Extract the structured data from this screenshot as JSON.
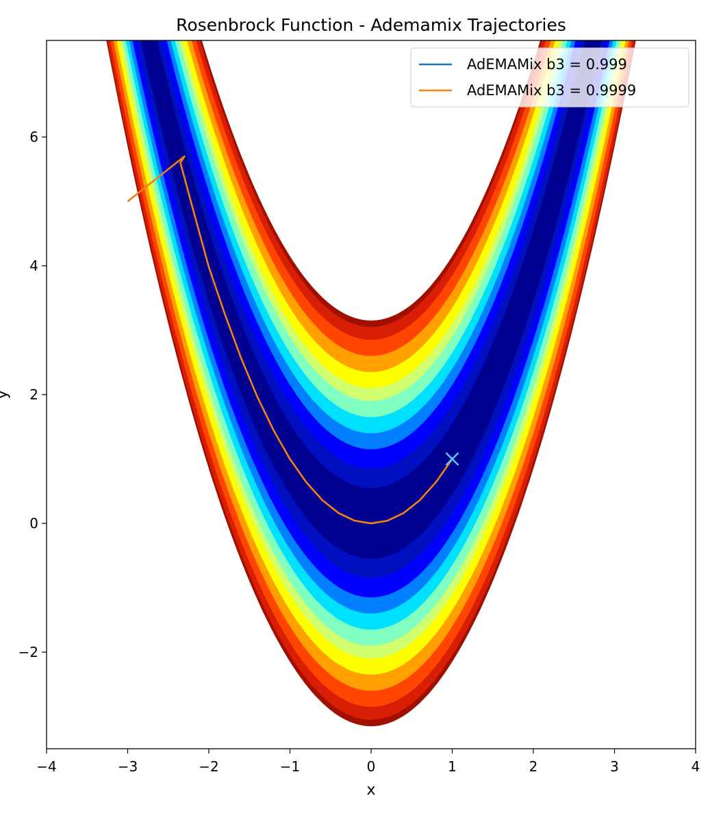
{
  "chart_data": {
    "type": "line",
    "title": "Rosenbrock Function - Ademamix Trajectories",
    "xlabel": "x",
    "ylabel": "y",
    "xlim": [
      -4,
      4
    ],
    "ylim": [
      -3.5,
      7.5
    ],
    "xticks": [
      -4,
      -3,
      -2,
      -1,
      0,
      1,
      2,
      3,
      4
    ],
    "yticks": [
      -2,
      0,
      2,
      4,
      6
    ],
    "grid": false,
    "legend_position": "top-right",
    "background": "Rosenbrock function filled contour (jet colormap)",
    "colormap": [
      "#000080",
      "#0000ff",
      "#0080ff",
      "#00e0ff",
      "#80ffc0",
      "#d0ff70",
      "#ffff00",
      "#ffa000",
      "#ff3000",
      "#a01000"
    ],
    "series": [
      {
        "name": "AdEMAMix b3 = 0.999",
        "color": "#1f77b4",
        "x": [
          -3.0,
          -2.3,
          -2.35,
          -2.2,
          -2.0,
          -1.8,
          -1.6,
          -1.4,
          -1.2,
          -1.0,
          -0.8,
          -0.6,
          -0.4,
          -0.2,
          0.0,
          0.2,
          0.4,
          0.6,
          0.8,
          1.0
        ],
        "y": [
          5.0,
          5.7,
          5.6,
          4.9,
          3.98,
          3.24,
          2.56,
          1.96,
          1.44,
          1.0,
          0.64,
          0.36,
          0.16,
          0.04,
          0.0,
          0.04,
          0.16,
          0.36,
          0.64,
          1.0
        ]
      },
      {
        "name": "AdEMAMix b3 = 0.9999",
        "color": "#ff7f0e",
        "x": [
          -3.0,
          -2.3,
          -2.35,
          -2.2,
          -2.0,
          -1.8,
          -1.6,
          -1.4,
          -1.2,
          -1.0,
          -0.8,
          -0.6,
          -0.4,
          -0.2,
          0.0,
          0.2,
          0.4,
          0.6,
          0.8,
          1.0
        ],
        "y": [
          5.0,
          5.7,
          5.6,
          4.9,
          3.98,
          3.24,
          2.56,
          1.96,
          1.44,
          1.0,
          0.64,
          0.36,
          0.16,
          0.04,
          0.0,
          0.04,
          0.16,
          0.36,
          0.64,
          1.0
        ]
      }
    ],
    "annotations": [
      {
        "type": "x-marker",
        "x": 1.0,
        "y": 1.0,
        "color": "#5bc8f5"
      }
    ]
  }
}
